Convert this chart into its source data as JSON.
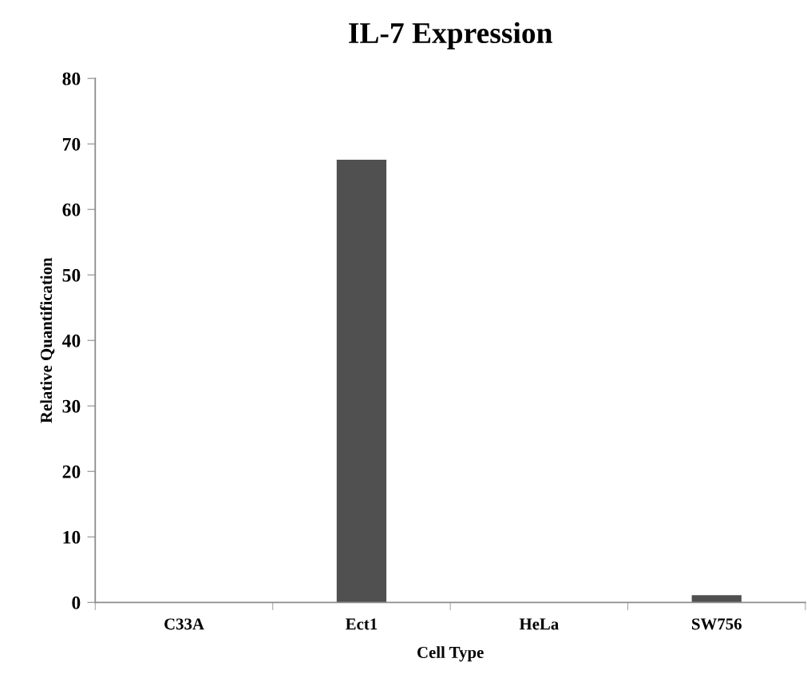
{
  "chart_data": {
    "type": "bar",
    "title": "IL-7 Expression",
    "xlabel": "Cell Type",
    "ylabel": "Relative Quantification",
    "categories": [
      "C33A",
      "Ect1",
      "HeLa",
      "SW756"
    ],
    "values": [
      0,
      67.6,
      0,
      1.1
    ],
    "color": "#505050",
    "ylim": [
      0,
      80
    ],
    "yticks": [
      0,
      10,
      20,
      30,
      40,
      50,
      60,
      70,
      80
    ],
    "grid": false,
    "legend": false
  }
}
